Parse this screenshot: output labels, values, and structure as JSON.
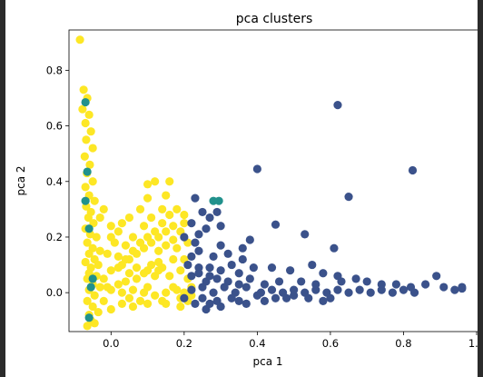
{
  "chart_data": {
    "type": "scatter",
    "title": "pca clusters",
    "xlabel": "pca 1",
    "ylabel": "pca 2",
    "xlim": [
      -0.115,
      1.005
    ],
    "ylim": [
      -0.14,
      0.945
    ],
    "xticks": [
      0.0,
      0.2,
      0.4,
      0.6,
      0.8,
      1.0
    ],
    "xtick_labels": [
      "0.0",
      "0.2",
      "0.4",
      "0.6",
      "0.8",
      "1.0"
    ],
    "yticks": [
      0.0,
      0.2,
      0.4,
      0.6,
      0.8
    ],
    "ytick_labels": [
      "0.0",
      "0.2",
      "0.4",
      "0.6",
      "0.8"
    ],
    "grid": false,
    "series": [
      {
        "color": "#fde725",
        "points": [
          [
            -0.085,
            0.91
          ],
          [
            -0.075,
            0.73
          ],
          [
            -0.065,
            0.7
          ],
          [
            -0.078,
            0.66
          ],
          [
            -0.06,
            0.64
          ],
          [
            -0.07,
            0.61
          ],
          [
            -0.055,
            0.58
          ],
          [
            -0.068,
            0.55
          ],
          [
            -0.05,
            0.52
          ],
          [
            -0.072,
            0.49
          ],
          [
            -0.058,
            0.46
          ],
          [
            -0.066,
            0.43
          ],
          [
            -0.05,
            0.4
          ],
          [
            -0.07,
            0.38
          ],
          [
            -0.06,
            0.35
          ],
          [
            -0.045,
            0.33
          ],
          [
            -0.068,
            0.31
          ],
          [
            -0.055,
            0.29
          ],
          [
            -0.062,
            0.27
          ],
          [
            -0.048,
            0.25
          ],
          [
            -0.07,
            0.23
          ],
          [
            -0.057,
            0.21
          ],
          [
            -0.04,
            0.2
          ],
          [
            -0.065,
            0.18
          ],
          [
            -0.05,
            0.16
          ],
          [
            -0.03,
            0.15
          ],
          [
            -0.06,
            0.14
          ],
          [
            -0.045,
            0.12
          ],
          [
            -0.07,
            0.11
          ],
          [
            -0.035,
            0.1
          ],
          [
            -0.055,
            0.09
          ],
          [
            -0.06,
            0.07
          ],
          [
            -0.04,
            0.06
          ],
          [
            -0.065,
            0.05
          ],
          [
            -0.05,
            0.03
          ],
          [
            -0.03,
            0.02
          ],
          [
            -0.06,
            0.01
          ],
          [
            -0.045,
            -0.01
          ],
          [
            -0.065,
            -0.03
          ],
          [
            -0.05,
            -0.05
          ],
          [
            -0.06,
            -0.08
          ],
          [
            -0.055,
            -0.1
          ],
          [
            -0.065,
            -0.12
          ],
          [
            -0.045,
            -0.11
          ],
          [
            -0.035,
            -0.07
          ],
          [
            0.0,
            0.01
          ],
          [
            0.03,
            0.0
          ],
          [
            0.06,
            0.01
          ],
          [
            0.09,
            0.0
          ],
          [
            0.12,
            -0.01
          ],
          [
            0.15,
            0.0
          ],
          [
            0.18,
            0.01
          ],
          [
            0.2,
            0.0
          ],
          [
            0.22,
            -0.01
          ],
          [
            0.1,
            0.02
          ],
          [
            0.05,
            -0.02
          ],
          [
            0.14,
            -0.03
          ],
          [
            0.19,
            -0.02
          ],
          [
            0.08,
            -0.03
          ],
          [
            0.17,
            0.02
          ],
          [
            -0.02,
            0.05
          ],
          [
            0.0,
            0.08
          ],
          [
            0.03,
            0.1
          ],
          [
            0.05,
            0.12
          ],
          [
            0.07,
            0.14
          ],
          [
            0.09,
            0.16
          ],
          [
            0.11,
            0.18
          ],
          [
            0.13,
            0.2
          ],
          [
            0.15,
            0.22
          ],
          [
            0.17,
            0.24
          ],
          [
            0.19,
            0.22
          ],
          [
            0.2,
            0.25
          ],
          [
            0.16,
            0.28
          ],
          [
            0.14,
            0.25
          ],
          [
            0.12,
            0.22
          ],
          [
            0.1,
            0.2
          ],
          [
            0.08,
            0.18
          ],
          [
            0.06,
            0.15
          ],
          [
            0.04,
            0.12
          ],
          [
            0.02,
            0.09
          ],
          [
            0.01,
            0.18
          ],
          [
            0.0,
            0.2
          ],
          [
            0.02,
            0.22
          ],
          [
            0.03,
            0.25
          ],
          [
            0.05,
            0.27
          ],
          [
            0.08,
            0.3
          ],
          [
            0.1,
            0.34
          ],
          [
            0.12,
            0.4
          ],
          [
            0.1,
            0.39
          ],
          [
            0.16,
            0.4
          ],
          [
            0.14,
            0.3
          ],
          [
            0.18,
            0.3
          ],
          [
            0.2,
            0.28
          ],
          [
            0.15,
            0.35
          ],
          [
            0.04,
            0.17
          ],
          [
            0.06,
            0.2
          ],
          [
            0.09,
            0.24
          ],
          [
            0.11,
            0.27
          ],
          [
            0.13,
            0.15
          ],
          [
            0.17,
            0.12
          ],
          [
            0.19,
            0.08
          ],
          [
            0.21,
            0.05
          ],
          [
            0.16,
            0.06
          ],
          [
            0.14,
            0.09
          ],
          [
            0.12,
            0.06
          ],
          [
            0.1,
            0.08
          ],
          [
            0.07,
            0.05
          ],
          [
            0.04,
            0.04
          ],
          [
            0.02,
            0.03
          ],
          [
            0.18,
            0.16
          ],
          [
            0.21,
            0.18
          ],
          [
            0.2,
            0.12
          ],
          [
            0.17,
            0.19
          ],
          [
            0.15,
            0.17
          ],
          [
            0.13,
            0.11
          ],
          [
            -0.02,
            0.3
          ],
          [
            -0.03,
            0.27
          ],
          [
            0.0,
            0.24
          ],
          [
            -0.01,
            0.14
          ],
          [
            0.02,
            0.13
          ],
          [
            0.13,
            0.08
          ],
          [
            0.11,
            0.1
          ],
          [
            0.09,
            0.07
          ],
          [
            0.07,
            0.09
          ],
          [
            0.05,
            0.07
          ],
          [
            0.22,
            0.02
          ],
          [
            0.21,
            -0.03
          ],
          [
            0.19,
            -0.05
          ],
          [
            0.15,
            -0.04
          ],
          [
            0.1,
            -0.04
          ],
          [
            0.06,
            -0.05
          ],
          [
            0.03,
            -0.04
          ],
          [
            0.0,
            -0.06
          ],
          [
            -0.02,
            -0.03
          ],
          [
            -0.01,
            0.02
          ]
        ]
      },
      {
        "color": "#21918c",
        "points": [
          [
            -0.07,
            0.685
          ],
          [
            -0.065,
            0.435
          ],
          [
            -0.06,
            0.23
          ],
          [
            -0.055,
            0.02
          ],
          [
            -0.06,
            -0.09
          ],
          [
            -0.05,
            0.05
          ],
          [
            0.28,
            0.33
          ],
          [
            0.295,
            0.33
          ],
          [
            -0.07,
            0.33
          ]
        ]
      },
      {
        "color": "#3b528b",
        "points": [
          [
            0.62,
            0.675
          ],
          [
            0.4,
            0.445
          ],
          [
            0.825,
            0.44
          ],
          [
            0.65,
            0.345
          ],
          [
            0.29,
            0.29
          ],
          [
            0.45,
            0.245
          ],
          [
            0.23,
            0.34
          ],
          [
            0.25,
            0.29
          ],
          [
            0.22,
            0.25
          ],
          [
            0.27,
            0.27
          ],
          [
            0.3,
            0.24
          ],
          [
            0.24,
            0.21
          ],
          [
            0.26,
            0.23
          ],
          [
            0.53,
            0.21
          ],
          [
            0.61,
            0.16
          ],
          [
            0.38,
            0.19
          ],
          [
            0.36,
            0.16
          ],
          [
            0.3,
            0.17
          ],
          [
            0.32,
            0.14
          ],
          [
            0.28,
            0.13
          ],
          [
            0.24,
            0.15
          ],
          [
            0.22,
            0.13
          ],
          [
            0.36,
            0.12
          ],
          [
            0.39,
            0.09
          ],
          [
            0.33,
            0.1
          ],
          [
            0.3,
            0.08
          ],
          [
            0.27,
            0.09
          ],
          [
            0.24,
            0.07
          ],
          [
            0.22,
            0.06
          ],
          [
            0.35,
            0.07
          ],
          [
            0.44,
            0.09
          ],
          [
            0.49,
            0.08
          ],
          [
            0.55,
            0.1
          ],
          [
            0.58,
            0.07
          ],
          [
            0.62,
            0.06
          ],
          [
            0.63,
            0.04
          ],
          [
            0.67,
            0.05
          ],
          [
            0.7,
            0.04
          ],
          [
            0.74,
            0.03
          ],
          [
            0.78,
            0.03
          ],
          [
            0.82,
            0.02
          ],
          [
            0.86,
            0.03
          ],
          [
            0.89,
            0.06
          ],
          [
            0.91,
            0.02
          ],
          [
            0.94,
            0.01
          ],
          [
            0.96,
            0.02
          ],
          [
            0.96,
            0.015
          ],
          [
            0.6,
            -0.02
          ],
          [
            0.58,
            -0.03
          ],
          [
            0.5,
            -0.01
          ],
          [
            0.45,
            -0.02
          ],
          [
            0.4,
            -0.01
          ],
          [
            0.35,
            -0.03
          ],
          [
            0.3,
            -0.05
          ],
          [
            0.26,
            -0.06
          ],
          [
            0.23,
            -0.04
          ],
          [
            0.2,
            -0.02
          ],
          [
            0.22,
            0.01
          ],
          [
            0.25,
            0.02
          ],
          [
            0.28,
            0.0
          ],
          [
            0.31,
            0.02
          ],
          [
            0.34,
            0.0
          ],
          [
            0.37,
            0.02
          ],
          [
            0.41,
            0.0
          ],
          [
            0.44,
            0.01
          ],
          [
            0.47,
            0.0
          ],
          [
            0.5,
            0.01
          ],
          [
            0.53,
            0.0
          ],
          [
            0.56,
            0.01
          ],
          [
            0.59,
            0.0
          ],
          [
            0.62,
            0.01
          ],
          [
            0.65,
            0.0
          ],
          [
            0.68,
            0.01
          ],
          [
            0.71,
            0.0
          ],
          [
            0.74,
            0.01
          ],
          [
            0.77,
            0.0
          ],
          [
            0.8,
            0.01
          ],
          [
            0.83,
            0.0
          ],
          [
            0.26,
            0.04
          ],
          [
            0.29,
            0.05
          ],
          [
            0.32,
            0.04
          ],
          [
            0.35,
            0.03
          ],
          [
            0.38,
            0.05
          ],
          [
            0.42,
            0.03
          ],
          [
            0.46,
            0.04
          ],
          [
            0.52,
            0.04
          ],
          [
            0.56,
            0.03
          ],
          [
            0.25,
            -0.02
          ],
          [
            0.29,
            -0.03
          ],
          [
            0.33,
            -0.02
          ],
          [
            0.37,
            -0.04
          ],
          [
            0.42,
            -0.03
          ],
          [
            0.48,
            -0.02
          ],
          [
            0.54,
            -0.02
          ],
          [
            0.27,
            -0.04
          ],
          [
            0.24,
            0.09
          ],
          [
            0.21,
            0.1
          ],
          [
            0.23,
            0.18
          ],
          [
            0.2,
            0.2
          ],
          [
            0.27,
            0.06
          ]
        ]
      }
    ]
  }
}
